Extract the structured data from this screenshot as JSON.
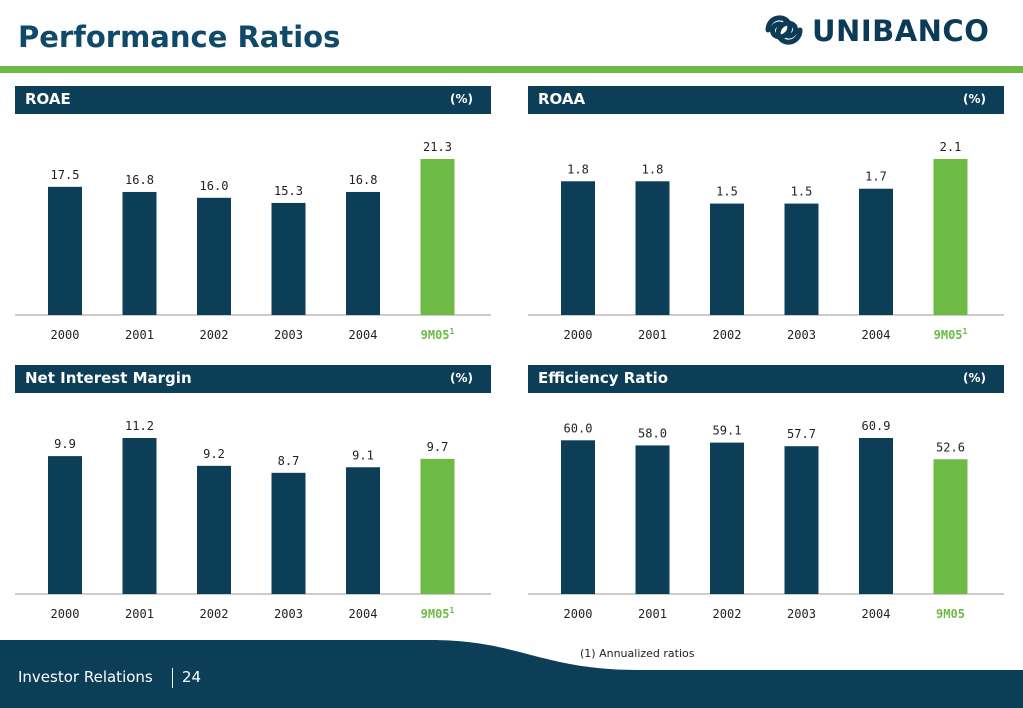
{
  "page": {
    "title": "Performance Ratios",
    "logo_text": "UNIBANCO",
    "footer_label": "Investor Relations",
    "page_number": "24",
    "footnote": "(1) Annualized ratios"
  },
  "colors": {
    "primary": "#0c3e58",
    "highlight": "#6dba45"
  },
  "chart_data": [
    {
      "type": "bar",
      "title": "ROAE",
      "unit": "(%)",
      "categories": [
        "2000",
        "2001",
        "2002",
        "2003",
        "2004",
        "9M05"
      ],
      "category_superscripts": [
        "",
        "",
        "",
        "",
        "",
        "1"
      ],
      "values": [
        17.5,
        16.8,
        16.0,
        15.3,
        16.8,
        21.3
      ],
      "labels": [
        "17.5",
        "16.8",
        "16.0",
        "15.3",
        "16.8",
        "21.3"
      ],
      "highlight_index": 5,
      "ylim": [
        0,
        21.3
      ]
    },
    {
      "type": "bar",
      "title": "ROAA",
      "unit": "(%)",
      "categories": [
        "2000",
        "2001",
        "2002",
        "2003",
        "2004",
        "9M05"
      ],
      "category_superscripts": [
        "",
        "",
        "",
        "",
        "",
        "1"
      ],
      "values": [
        1.8,
        1.8,
        1.5,
        1.5,
        1.7,
        2.1
      ],
      "labels": [
        "1.8",
        "1.8",
        "1.5",
        "1.5",
        "1.7",
        "2.1"
      ],
      "highlight_index": 5,
      "ylim": [
        0,
        2.1
      ]
    },
    {
      "type": "bar",
      "title": "Net Interest Margin",
      "unit": "(%)",
      "categories": [
        "2000",
        "2001",
        "2002",
        "2003",
        "2004",
        "9M05"
      ],
      "category_superscripts": [
        "",
        "",
        "",
        "",
        "",
        "1"
      ],
      "values": [
        9.9,
        11.2,
        9.2,
        8.7,
        9.1,
        9.7
      ],
      "labels": [
        "9.9",
        "11.2",
        "9.2",
        "8.7",
        "9.1",
        "9.7"
      ],
      "highlight_index": 5,
      "ylim": [
        0,
        11.2
      ]
    },
    {
      "type": "bar",
      "title": "Efficiency Ratio",
      "unit": "(%)",
      "categories": [
        "2000",
        "2001",
        "2002",
        "2003",
        "2004",
        "9M05"
      ],
      "category_superscripts": [
        "",
        "",
        "",
        "",
        "",
        ""
      ],
      "values": [
        60.0,
        58.0,
        59.1,
        57.7,
        60.9,
        52.6
      ],
      "labels": [
        "60.0",
        "58.0",
        "59.1",
        "57.7",
        "60.9",
        "52.6"
      ],
      "highlight_index": 5,
      "ylim": [
        0,
        60.9
      ]
    }
  ]
}
